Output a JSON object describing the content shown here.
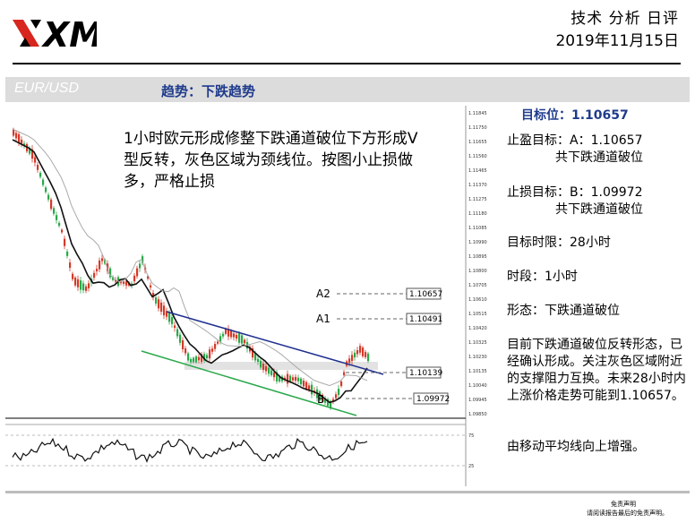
{
  "header": {
    "logo_text": "XM",
    "report_title": "技术 分析 日评",
    "date": "2019年11月15日"
  },
  "banner": {
    "pair": "EUR/USD",
    "trend": "趋势：下跌趋势"
  },
  "chart": {
    "note": "1小时欧元形成修整下跌通道破位下方形成V型反转，灰色区域为颈线位。按图小止损做多，严格止损",
    "labels": {
      "a2": "A2",
      "a1": "A1",
      "b": "B"
    },
    "price_tags": [
      "1.10657",
      "1.10491",
      "1.10139",
      "1.09972"
    ],
    "y_ticks": [
      "1.11845",
      "1.11750",
      "1.11655",
      "1.11560",
      "1.11465",
      "1.11370",
      "1.11275",
      "1.11180",
      "1.11085",
      "1.10990",
      "1.10895",
      "1.10800",
      "1.10705",
      "1.10610",
      "1.10515",
      "1.10420",
      "1.10325",
      "1.10230",
      "1.10135",
      "1.10040",
      "1.09945",
      "1.09850"
    ],
    "osc_ticks": [
      "75",
      "25"
    ]
  },
  "sidebar": {
    "target": "目标位：1.10657",
    "take_profit": "止盈目标：A：1.10657",
    "take_profit_note": "共下跌通道破位",
    "stop_loss": "止损目标：B：1.09972",
    "stop_loss_note": "共下跌通道破位",
    "time_limit": "目标时限：28小时",
    "timeframe": "时段：1小时",
    "pattern": "形态：下跌通道破位",
    "analysis": "目前下跌通道破位反转形态，已经确认形成。关注灰色区域附近的支撑阻力互换。未来28小时内上涨价格走势可能到1.10657。",
    "ma_note": "由移动平均线向上增强。"
  },
  "footer": {
    "disclaimer_title": "免责声明",
    "disclaimer_text": "请阅读报告最后的免责声明。"
  },
  "colors": {
    "bull": "#2aa84a",
    "bear": "#d43a2a",
    "upper_channel": "#1f2f8f",
    "lower_channel": "#2aa84a",
    "accent": "#1f3b8c"
  }
}
